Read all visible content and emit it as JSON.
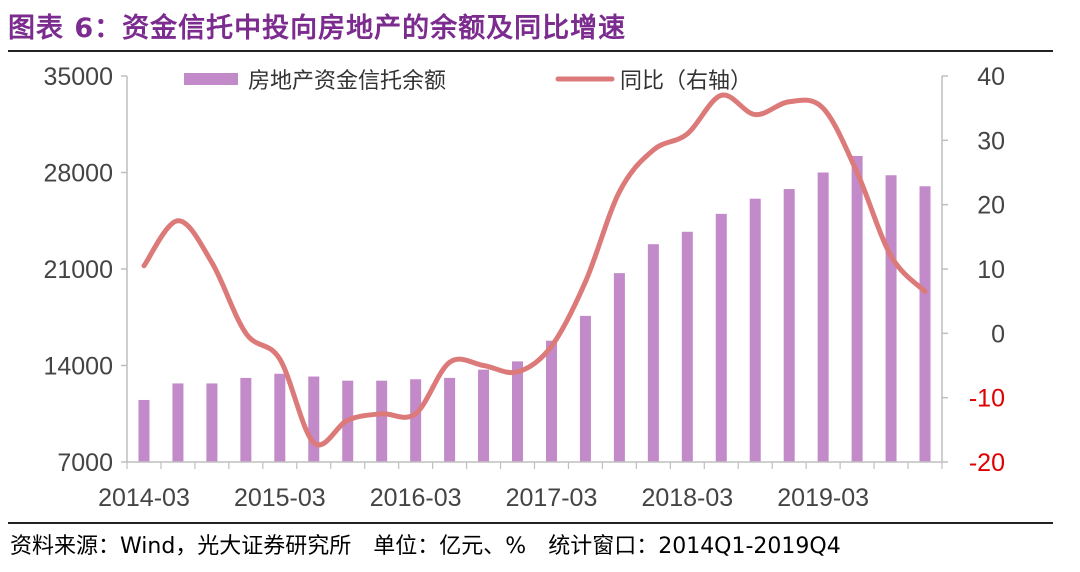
{
  "header": {
    "title": "图表 6：资金信托中投向房地产的余额及同比增速"
  },
  "footer": {
    "source": "资料来源：Wind，光大证券研究所　单位：亿元、%　统计窗口：2014Q1-2019Q4"
  },
  "colors": {
    "bar": "#C28AC8",
    "line": "#DC7A7A",
    "title": "#7B2C8E",
    "negative_tick": "#E00000"
  },
  "chart_data": {
    "type": "bar+line",
    "title": "",
    "x_tick_labels": [
      "2014-03",
      "2015-03",
      "2016-03",
      "2017-03",
      "2018-03",
      "2019-03"
    ],
    "x_tick_period_indices": [
      0,
      4,
      8,
      12,
      16,
      20
    ],
    "periods": 24,
    "grid": false,
    "legend_position": "top",
    "y_left": {
      "min": 7000,
      "max": 35000,
      "ticks": [
        7000,
        14000,
        21000,
        28000,
        35000
      ]
    },
    "y_right": {
      "min": -20,
      "max": 40,
      "ticks": [
        -20,
        -10,
        0,
        10,
        20,
        30,
        40
      ]
    },
    "series": [
      {
        "name": "房地产资金信托余额",
        "type": "bar",
        "axis": "left",
        "values": [
          11500,
          12700,
          12700,
          13100,
          13400,
          13200,
          12900,
          12900,
          13000,
          13100,
          13700,
          14300,
          15800,
          17600,
          20700,
          22800,
          23700,
          25000,
          26100,
          26800,
          28000,
          29200,
          27800,
          27000
        ]
      },
      {
        "name": "同比（右轴）",
        "type": "line",
        "axis": "right",
        "values": [
          10.5,
          17.5,
          11,
          0,
          -4,
          -17,
          -13.5,
          -12.5,
          -12.5,
          -4.5,
          -5,
          -6,
          -2,
          8,
          22,
          28.5,
          31,
          37,
          34,
          36,
          35,
          25,
          12,
          6.5
        ]
      }
    ]
  }
}
